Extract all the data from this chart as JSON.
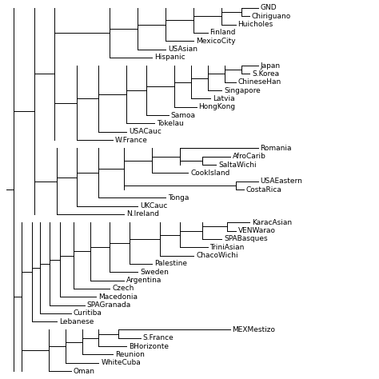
{
  "labels": [
    "GND",
    "Chiriguano",
    "Huicholes",
    "Finland",
    "MexicoCity",
    "USAsian",
    "Hispanic",
    "Japan",
    "S.Korea",
    "ChineseHan",
    "Singapore",
    "Latvia",
    "HongKong",
    "Samoa",
    "Tokelau",
    "USACauc",
    "W.France",
    "Romania",
    "AfroCarib",
    "SaltaWichi",
    "CookIsland",
    "USAEastern",
    "CostaRica",
    "Tonga",
    "UKCauc",
    "N.Ireland",
    "KaracAsian",
    "VENWarao",
    "SPABasques",
    "TriniAsian",
    "ChacoWichi",
    "Palestine",
    "Sweden",
    "Argentina",
    "Czech",
    "Macedonia",
    "SPAGranada",
    "Curitiba",
    "Lebanese",
    "MEXMestizo",
    "S.France",
    "BHorizonte",
    "Reunion",
    "WhiteCuba",
    "Oman"
  ],
  "background_color": "#ffffff",
  "line_color": "#000000",
  "fontsize": 6.5,
  "figsize": [
    4.74,
    4.74
  ],
  "dpi": 100
}
